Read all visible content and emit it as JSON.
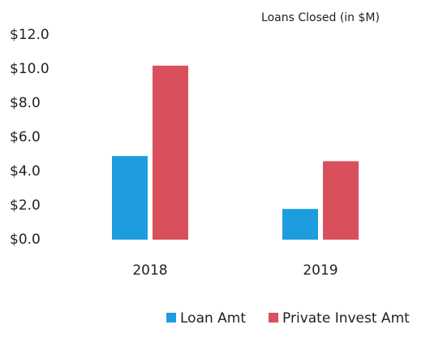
{
  "chart_data": {
    "type": "bar",
    "title": "Loans Closed (in $M)",
    "categories": [
      "2018",
      "2019"
    ],
    "series": [
      {
        "name": "Loan Amt",
        "color": "#1d9de0",
        "values": [
          4.9,
          1.8
        ]
      },
      {
        "name": "Private Invest Amt",
        "color": "#d9505c",
        "values": [
          10.2,
          4.6
        ]
      }
    ],
    "ylim": [
      0,
      12
    ],
    "yticks": [
      {
        "value": 0,
        "label": "$0.0"
      },
      {
        "value": 2,
        "label": "$2.0"
      },
      {
        "value": 4,
        "label": "$4.0"
      },
      {
        "value": 6,
        "label": "$6.0"
      },
      {
        "value": 8,
        "label": "$8.0"
      },
      {
        "value": 10,
        "label": "$10.0"
      },
      {
        "value": 12,
        "label": "$12.0"
      }
    ],
    "grid": false,
    "legend": "bottom"
  }
}
